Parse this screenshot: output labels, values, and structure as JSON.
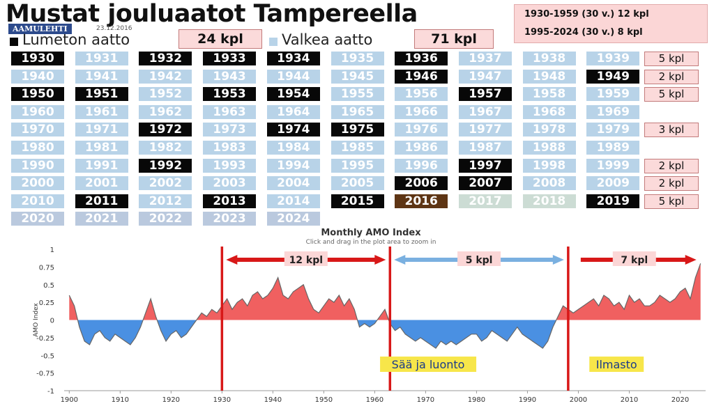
{
  "header": {
    "title": "Mustat jouluaatot Tampereella",
    "paper": "AAMULEHTI",
    "date": "23.12.2016",
    "legend_black": "Lumeton aatto",
    "legend_black_count": "24 kpl",
    "legend_white": "Valkea aatto",
    "legend_white_count": "71 kpl",
    "summary_1": "1930-1959 (30 v.) 12 kpl",
    "summary_2": "1995-2024 (30 v.) 8 kpl"
  },
  "colors": {
    "black_eve": "#080808",
    "white_eve": "#b8d3e8",
    "positive": "#f06060",
    "negative": "#4a90e2",
    "divider": "#d81818"
  },
  "years_grid": {
    "rows": [
      [
        {
          "y": "1930",
          "k": "black"
        },
        {
          "y": "1931",
          "k": "snow"
        },
        {
          "y": "1932",
          "k": "black"
        },
        {
          "y": "1933",
          "k": "black"
        },
        {
          "y": "1934",
          "k": "black"
        },
        {
          "y": "1935",
          "k": "snow"
        },
        {
          "y": "1936",
          "k": "black"
        },
        {
          "y": "1937",
          "k": "snow"
        },
        {
          "y": "1938",
          "k": "snow"
        },
        {
          "y": "1939",
          "k": "snow"
        }
      ],
      [
        {
          "y": "1940",
          "k": "snow"
        },
        {
          "y": "1941",
          "k": "snow"
        },
        {
          "y": "1942",
          "k": "snow"
        },
        {
          "y": "1943",
          "k": "snow"
        },
        {
          "y": "1944",
          "k": "snow"
        },
        {
          "y": "1945",
          "k": "snow"
        },
        {
          "y": "1946",
          "k": "black"
        },
        {
          "y": "1947",
          "k": "snow"
        },
        {
          "y": "1948",
          "k": "snow"
        },
        {
          "y": "1949",
          "k": "black"
        }
      ],
      [
        {
          "y": "1950",
          "k": "black"
        },
        {
          "y": "1951",
          "k": "black"
        },
        {
          "y": "1952",
          "k": "snow"
        },
        {
          "y": "1953",
          "k": "black"
        },
        {
          "y": "1954",
          "k": "black"
        },
        {
          "y": "1955",
          "k": "snow"
        },
        {
          "y": "1956",
          "k": "snow"
        },
        {
          "y": "1957",
          "k": "black"
        },
        {
          "y": "1958",
          "k": "snow"
        },
        {
          "y": "1959",
          "k": "snow"
        }
      ],
      [
        {
          "y": "1960",
          "k": "snow"
        },
        {
          "y": "1961",
          "k": "snow"
        },
        {
          "y": "1962",
          "k": "snow"
        },
        {
          "y": "1963",
          "k": "snow"
        },
        {
          "y": "1964",
          "k": "snow"
        },
        {
          "y": "1965",
          "k": "snow"
        },
        {
          "y": "1966",
          "k": "snow"
        },
        {
          "y": "1967",
          "k": "snow"
        },
        {
          "y": "1968",
          "k": "snow"
        },
        {
          "y": "1969",
          "k": "snow"
        }
      ],
      [
        {
          "y": "1970",
          "k": "snow"
        },
        {
          "y": "1971",
          "k": "snow"
        },
        {
          "y": "1972",
          "k": "black"
        },
        {
          "y": "1973",
          "k": "snow"
        },
        {
          "y": "1974",
          "k": "black"
        },
        {
          "y": "1975",
          "k": "black"
        },
        {
          "y": "1976",
          "k": "snow"
        },
        {
          "y": "1977",
          "k": "snow"
        },
        {
          "y": "1978",
          "k": "snow"
        },
        {
          "y": "1979",
          "k": "snow"
        }
      ],
      [
        {
          "y": "1980",
          "k": "snow"
        },
        {
          "y": "1981",
          "k": "snow"
        },
        {
          "y": "1982",
          "k": "snow"
        },
        {
          "y": "1983",
          "k": "snow"
        },
        {
          "y": "1984",
          "k": "snow"
        },
        {
          "y": "1985",
          "k": "snow"
        },
        {
          "y": "1986",
          "k": "snow"
        },
        {
          "y": "1987",
          "k": "snow"
        },
        {
          "y": "1988",
          "k": "snow"
        },
        {
          "y": "1989",
          "k": "snow"
        }
      ],
      [
        {
          "y": "1990",
          "k": "snow"
        },
        {
          "y": "1991",
          "k": "snow"
        },
        {
          "y": "1992",
          "k": "black"
        },
        {
          "y": "1993",
          "k": "snow"
        },
        {
          "y": "1994",
          "k": "snow"
        },
        {
          "y": "1995",
          "k": "snow"
        },
        {
          "y": "1996",
          "k": "snow"
        },
        {
          "y": "1997",
          "k": "black"
        },
        {
          "y": "1998",
          "k": "snow"
        },
        {
          "y": "1999",
          "k": "snow"
        }
      ],
      [
        {
          "y": "2000",
          "k": "snow"
        },
        {
          "y": "2001",
          "k": "snow"
        },
        {
          "y": "2002",
          "k": "snow"
        },
        {
          "y": "2003",
          "k": "snow"
        },
        {
          "y": "2004",
          "k": "snow"
        },
        {
          "y": "2005",
          "k": "snow"
        },
        {
          "y": "2006",
          "k": "black"
        },
        {
          "y": "2007",
          "k": "black"
        },
        {
          "y": "2008",
          "k": "snow"
        },
        {
          "y": "2009",
          "k": "snow"
        }
      ],
      [
        {
          "y": "2010",
          "k": "snow"
        },
        {
          "y": "2011",
          "k": "black"
        },
        {
          "y": "2012",
          "k": "snow"
        },
        {
          "y": "2013",
          "k": "black"
        },
        {
          "y": "2014",
          "k": "snow"
        },
        {
          "y": "2015",
          "k": "black"
        },
        {
          "y": "2016",
          "k": "brown"
        },
        {
          "y": "2017",
          "k": "grey"
        },
        {
          "y": "2018",
          "k": "grey"
        },
        {
          "y": "2019",
          "k": "black"
        }
      ],
      [
        {
          "y": "2020",
          "k": "late"
        },
        {
          "y": "2021",
          "k": "late"
        },
        {
          "y": "2022",
          "k": "late"
        },
        {
          "y": "2023",
          "k": "late"
        },
        {
          "y": "2024",
          "k": "late"
        }
      ]
    ],
    "row_counts": [
      "5 kpl",
      "2 kpl",
      "5 kpl",
      "",
      "3 kpl",
      "",
      "2 kpl",
      "2 kpl",
      "5 kpl",
      ""
    ]
  },
  "chart_data": {
    "type": "area",
    "title": "Monthly AMO Index",
    "subtitle": "Click and drag in the plot area to zoom in",
    "ylabel": "AMO Index",
    "xlabel": "",
    "xlim": [
      1899,
      2025
    ],
    "ylim": [
      -1,
      1
    ],
    "yticks": [
      "1",
      "0.75",
      "0.5",
      "0.25",
      "0",
      "-0.25",
      "-0.5",
      "-0.75",
      "-1"
    ],
    "xticks": [
      "1900",
      "1910",
      "1920",
      "1930",
      "1940",
      "1950",
      "1960",
      "1970",
      "1980",
      "1990",
      "2000",
      "2010",
      "2020"
    ],
    "series": [
      {
        "x": [
          1900,
          1901,
          1902,
          1903,
          1904,
          1905,
          1906,
          1907,
          1908,
          1909,
          1910,
          1911,
          1912,
          1913,
          1914,
          1915,
          1916,
          1917,
          1918,
          1919,
          1920,
          1921,
          1922,
          1923,
          1924,
          1925,
          1926,
          1927,
          1928,
          1929,
          1930,
          1931,
          1932,
          1933,
          1934,
          1935,
          1936,
          1937,
          1938,
          1939,
          1940,
          1941,
          1942,
          1943,
          1944,
          1945,
          1946,
          1947,
          1948,
          1949,
          1950,
          1951,
          1952,
          1953,
          1954,
          1955,
          1956,
          1957,
          1958,
          1959,
          1960,
          1961,
          1962,
          1963,
          1964,
          1965,
          1966,
          1967,
          1968,
          1969,
          1970,
          1971,
          1972,
          1973,
          1974,
          1975,
          1976,
          1977,
          1978,
          1979,
          1980,
          1981,
          1982,
          1983,
          1984,
          1985,
          1986,
          1987,
          1988,
          1989,
          1990,
          1991,
          1992,
          1993,
          1994,
          1995,
          1996,
          1997,
          1998,
          1999,
          2000,
          2001,
          2002,
          2003,
          2004,
          2005,
          2006,
          2007,
          2008,
          2009,
          2010,
          2011,
          2012,
          2013,
          2014,
          2015,
          2016,
          2017,
          2018,
          2019,
          2020,
          2021,
          2022,
          2023,
          2024
        ],
        "y": [
          0.35,
          0.2,
          -0.1,
          -0.3,
          -0.35,
          -0.2,
          -0.15,
          -0.25,
          -0.3,
          -0.2,
          -0.25,
          -0.3,
          -0.35,
          -0.25,
          -0.1,
          0.1,
          0.3,
          0.05,
          -0.15,
          -0.3,
          -0.2,
          -0.15,
          -0.25,
          -0.2,
          -0.1,
          0.0,
          0.1,
          0.05,
          0.15,
          0.1,
          0.2,
          0.3,
          0.15,
          0.25,
          0.3,
          0.2,
          0.35,
          0.4,
          0.3,
          0.35,
          0.45,
          0.6,
          0.35,
          0.3,
          0.4,
          0.45,
          0.5,
          0.3,
          0.15,
          0.1,
          0.2,
          0.3,
          0.25,
          0.35,
          0.2,
          0.3,
          0.15,
          -0.1,
          -0.05,
          -0.1,
          -0.05,
          0.05,
          0.15,
          -0.05,
          -0.15,
          -0.1,
          -0.2,
          -0.25,
          -0.3,
          -0.25,
          -0.3,
          -0.35,
          -0.4,
          -0.3,
          -0.35,
          -0.3,
          -0.35,
          -0.3,
          -0.25,
          -0.2,
          -0.2,
          -0.3,
          -0.25,
          -0.15,
          -0.2,
          -0.25,
          -0.3,
          -0.2,
          -0.1,
          -0.2,
          -0.25,
          -0.3,
          -0.35,
          -0.4,
          -0.3,
          -0.1,
          0.05,
          0.2,
          0.15,
          0.1,
          0.15,
          0.2,
          0.25,
          0.3,
          0.2,
          0.35,
          0.3,
          0.2,
          0.25,
          0.15,
          0.35,
          0.25,
          0.3,
          0.2,
          0.2,
          0.25,
          0.35,
          0.3,
          0.25,
          0.3,
          0.4,
          0.45,
          0.3,
          0.6,
          0.8
        ]
      }
    ],
    "dividers": [
      1930,
      1963,
      1998
    ],
    "annotations": [
      {
        "text": "12 kpl",
        "from": 1930,
        "to": 1963
      },
      {
        "text": "5 kpl",
        "from": 1963,
        "to": 1998
      },
      {
        "text": "7 kpl",
        "from": 1998,
        "to": 2024
      }
    ],
    "tags": [
      {
        "text": "Sää ja luonto"
      },
      {
        "text": "Ilmasto"
      }
    ]
  }
}
